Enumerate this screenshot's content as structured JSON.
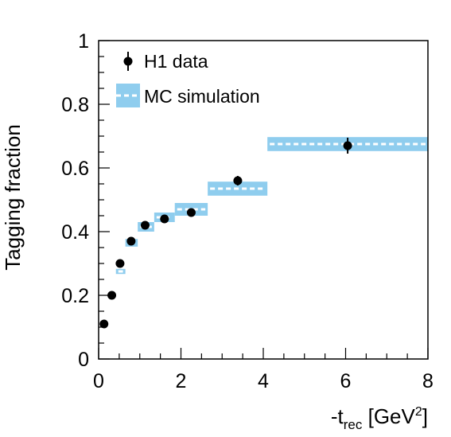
{
  "chart_data": {
    "type": "scatter",
    "ylabel": "Tagging fraction",
    "xlabel": {
      "main": "-t",
      "sub": "rec",
      "unit_open": " [GeV",
      "sup": "2",
      "unit_close": "]"
    },
    "xlim": [
      0,
      8
    ],
    "ylim": [
      0,
      1
    ],
    "x_ticks": [
      "0",
      "2",
      "4",
      "6",
      "8"
    ],
    "y_ticks": [
      "0",
      "0.2",
      "0.4",
      "0.6",
      "0.8",
      "1"
    ],
    "x_minor_step": 0.5,
    "y_minor_step": 0.05,
    "legend": {
      "position": "top-left",
      "entries": [
        "H1 data",
        "MC simulation"
      ]
    },
    "colors": {
      "data": "#000000",
      "mc_band": "#8fcdee",
      "mc_line": "#ffffff"
    },
    "series": [
      {
        "name": "H1 data",
        "points": [
          {
            "x": 0.13,
            "y": 0.11,
            "err": 0.01
          },
          {
            "x": 0.32,
            "y": 0.2,
            "err": 0.01
          },
          {
            "x": 0.52,
            "y": 0.3,
            "err": 0.01
          },
          {
            "x": 0.79,
            "y": 0.37,
            "err": 0.01
          },
          {
            "x": 1.13,
            "y": 0.42,
            "err": 0.01
          },
          {
            "x": 1.6,
            "y": 0.44,
            "err": 0.01
          },
          {
            "x": 2.25,
            "y": 0.46,
            "err": 0.01
          },
          {
            "x": 3.38,
            "y": 0.56,
            "err": 0.015
          },
          {
            "x": 6.05,
            "y": 0.67,
            "err": 0.025
          }
        ]
      },
      {
        "name": "MC simulation",
        "bins": [
          {
            "x0": 0.42,
            "x1": 0.65,
            "y": 0.275,
            "err": 0.008
          },
          {
            "x0": 0.65,
            "x1": 0.95,
            "y": 0.365,
            "err": 0.012
          },
          {
            "x0": 0.95,
            "x1": 1.35,
            "y": 0.415,
            "err": 0.015
          },
          {
            "x0": 1.35,
            "x1": 1.85,
            "y": 0.445,
            "err": 0.015
          },
          {
            "x0": 1.85,
            "x1": 2.65,
            "y": 0.47,
            "err": 0.02
          },
          {
            "x0": 2.65,
            "x1": 4.1,
            "y": 0.535,
            "err": 0.022
          },
          {
            "x0": 4.1,
            "x1": 8.0,
            "y": 0.675,
            "err": 0.022
          }
        ]
      }
    ]
  }
}
